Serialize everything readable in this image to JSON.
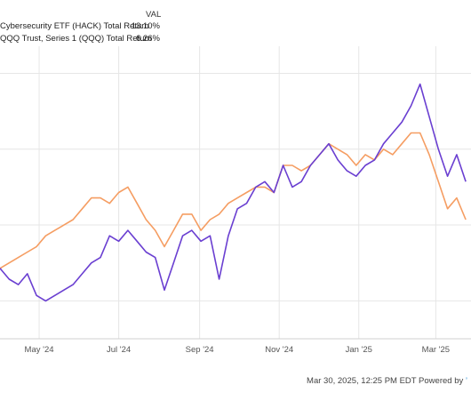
{
  "legend": {
    "header": "VAL",
    "items": [
      {
        "name": "Cybersecurity ETF (HACK) Total Return",
        "value": "13.10%",
        "color": "#6a3fd1"
      },
      {
        "name": "QQQ Trust, Series 1 (QQQ) Total Return",
        "value": "6.26%",
        "color": "#f59d62"
      }
    ]
  },
  "footer": {
    "text": "Mar 30, 2025, 12:25 PM EDT Powered by"
  },
  "chart_data": {
    "type": "line",
    "x_ticks": [
      "May '24",
      "Jul '24",
      "Sep '24",
      "Nov '24",
      "Jan '25",
      "Mar '25"
    ],
    "series": [
      {
        "name": "Cybersecurity ETF (HACK) Total Return",
        "color": "#6a3fd1",
        "points": [
          [
            "2024-04-01",
            -1
          ],
          [
            "2024-04-08",
            -3
          ],
          [
            "2024-04-15",
            -4
          ],
          [
            "2024-04-22",
            -2
          ],
          [
            "2024-04-29",
            -6
          ],
          [
            "2024-05-06",
            -7
          ],
          [
            "2024-05-13",
            -6
          ],
          [
            "2024-05-20",
            -5
          ],
          [
            "2024-05-27",
            -4
          ],
          [
            "2024-06-03",
            -2
          ],
          [
            "2024-06-10",
            0
          ],
          [
            "2024-06-17",
            1
          ],
          [
            "2024-06-24",
            5
          ],
          [
            "2024-07-01",
            4
          ],
          [
            "2024-07-08",
            6
          ],
          [
            "2024-07-15",
            4
          ],
          [
            "2024-07-22",
            2
          ],
          [
            "2024-07-29",
            1
          ],
          [
            "2024-08-05",
            -5
          ],
          [
            "2024-08-12",
            0
          ],
          [
            "2024-08-19",
            5
          ],
          [
            "2024-08-26",
            6
          ],
          [
            "2024-09-02",
            4
          ],
          [
            "2024-09-09",
            5
          ],
          [
            "2024-09-16",
            -3
          ],
          [
            "2024-09-23",
            5
          ],
          [
            "2024-09-30",
            10
          ],
          [
            "2024-10-07",
            11
          ],
          [
            "2024-10-14",
            14
          ],
          [
            "2024-10-21",
            15
          ],
          [
            "2024-10-28",
            13
          ],
          [
            "2024-11-04",
            18
          ],
          [
            "2024-11-11",
            14
          ],
          [
            "2024-11-18",
            15
          ],
          [
            "2024-11-25",
            18
          ],
          [
            "2024-12-02",
            20
          ],
          [
            "2024-12-09",
            22
          ],
          [
            "2024-12-16",
            19
          ],
          [
            "2024-12-23",
            17
          ],
          [
            "2024-12-30",
            16
          ],
          [
            "2025-01-06",
            18
          ],
          [
            "2025-01-13",
            19
          ],
          [
            "2025-01-20",
            22
          ],
          [
            "2025-01-27",
            24
          ],
          [
            "2025-02-03",
            26
          ],
          [
            "2025-02-10",
            29
          ],
          [
            "2025-02-17",
            33
          ],
          [
            "2025-02-24",
            27
          ],
          [
            "2025-03-03",
            21
          ],
          [
            "2025-03-10",
            16
          ],
          [
            "2025-03-17",
            20
          ],
          [
            "2025-03-24",
            15
          ]
        ]
      },
      {
        "name": "QQQ Trust, Series 1 (QQQ) Total Return",
        "color": "#f59d62",
        "points": [
          [
            "2024-04-01",
            -1
          ],
          [
            "2024-04-08",
            0
          ],
          [
            "2024-04-15",
            1
          ],
          [
            "2024-04-22",
            2
          ],
          [
            "2024-04-29",
            3
          ],
          [
            "2024-05-06",
            5
          ],
          [
            "2024-05-13",
            6
          ],
          [
            "2024-05-20",
            7
          ],
          [
            "2024-05-27",
            8
          ],
          [
            "2024-06-03",
            10
          ],
          [
            "2024-06-10",
            12
          ],
          [
            "2024-06-17",
            12
          ],
          [
            "2024-06-24",
            11
          ],
          [
            "2024-07-01",
            13
          ],
          [
            "2024-07-08",
            14
          ],
          [
            "2024-07-15",
            11
          ],
          [
            "2024-07-22",
            8
          ],
          [
            "2024-07-29",
            6
          ],
          [
            "2024-08-05",
            3
          ],
          [
            "2024-08-12",
            6
          ],
          [
            "2024-08-19",
            9
          ],
          [
            "2024-08-26",
            9
          ],
          [
            "2024-09-02",
            6
          ],
          [
            "2024-09-09",
            8
          ],
          [
            "2024-09-16",
            9
          ],
          [
            "2024-09-23",
            11
          ],
          [
            "2024-09-30",
            12
          ],
          [
            "2024-10-07",
            13
          ],
          [
            "2024-10-14",
            14
          ],
          [
            "2024-10-21",
            14
          ],
          [
            "2024-10-28",
            13
          ],
          [
            "2024-11-04",
            18
          ],
          [
            "2024-11-11",
            18
          ],
          [
            "2024-11-18",
            17
          ],
          [
            "2024-11-25",
            18
          ],
          [
            "2024-12-02",
            20
          ],
          [
            "2024-12-09",
            22
          ],
          [
            "2024-12-16",
            21
          ],
          [
            "2024-12-23",
            20
          ],
          [
            "2024-12-30",
            18
          ],
          [
            "2025-01-06",
            20
          ],
          [
            "2025-01-13",
            19
          ],
          [
            "2025-01-20",
            21
          ],
          [
            "2025-01-27",
            20
          ],
          [
            "2025-02-03",
            22
          ],
          [
            "2025-02-10",
            24
          ],
          [
            "2025-02-17",
            24
          ],
          [
            "2025-02-24",
            20
          ],
          [
            "2025-03-03",
            15
          ],
          [
            "2025-03-10",
            10
          ],
          [
            "2025-03-17",
            12
          ],
          [
            "2025-03-24",
            8
          ]
        ]
      }
    ],
    "x_range": [
      "2024-04-01",
      "2025-03-28"
    ],
    "ylim": [
      -14,
      40
    ],
    "grid": true,
    "legend_position": "top-left"
  }
}
